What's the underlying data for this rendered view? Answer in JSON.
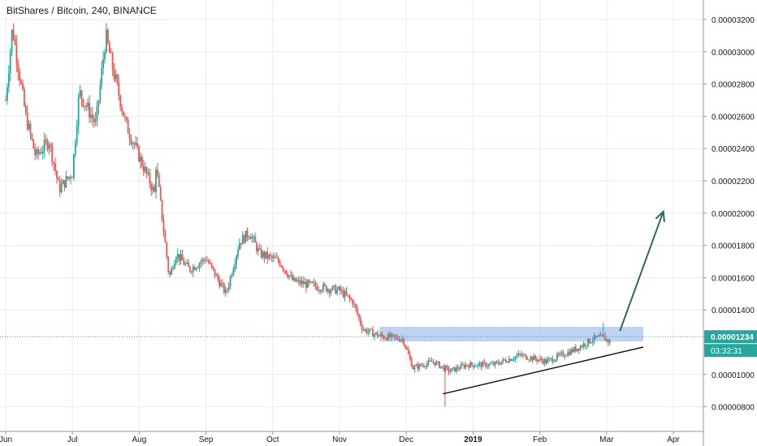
{
  "header": {
    "title": "BitShares / Bitcoin, 240, BINANCE"
  },
  "chart_data": {
    "type": "candlestick",
    "symbol": "BitShares / Bitcoin",
    "interval": "240",
    "exchange": "BINANCE",
    "x_labels": [
      "Jun",
      "Jul",
      "Aug",
      "Sep",
      "Oct",
      "Nov",
      "Dec",
      "2019",
      "Feb",
      "Mar",
      "Apr"
    ],
    "x_labels_bold": [
      "2019"
    ],
    "y_ticks": [
      "0.00003200",
      "0.00003000",
      "0.00002800",
      "0.00002600",
      "0.00002400",
      "0.00002200",
      "0.00002000",
      "0.00001800",
      "0.00001600",
      "0.00001400",
      "0.00001000",
      "0.00000800"
    ],
    "ylim": [
      6.5e-06,
      3.4e-05
    ],
    "grid": true,
    "price_path": [
      {
        "m": 0.0,
        "p": 2.7e-05
      },
      {
        "m": 0.1,
        "p": 3.15e-05
      },
      {
        "m": 0.3,
        "p": 2.6e-05
      },
      {
        "m": 0.45,
        "p": 2.35e-05
      },
      {
        "m": 0.65,
        "p": 2.45e-05
      },
      {
        "m": 0.8,
        "p": 2.15e-05
      },
      {
        "m": 1.0,
        "p": 2.25e-05
      },
      {
        "m": 1.1,
        "p": 2.75e-05
      },
      {
        "m": 1.35,
        "p": 2.55e-05
      },
      {
        "m": 1.5,
        "p": 3.1e-05
      },
      {
        "m": 1.6,
        "p": 2.9e-05
      },
      {
        "m": 1.8,
        "p": 2.55e-05
      },
      {
        "m": 2.0,
        "p": 2.35e-05
      },
      {
        "m": 2.25,
        "p": 2.1e-05
      },
      {
        "m": 2.25,
        "p": 2.3e-05
      },
      {
        "m": 2.35,
        "p": 1.95e-05
      },
      {
        "m": 2.45,
        "p": 1.6e-05
      },
      {
        "m": 2.55,
        "p": 1.75e-05
      },
      {
        "m": 2.75,
        "p": 1.65e-05
      },
      {
        "m": 3.0,
        "p": 1.72e-05
      },
      {
        "m": 3.3,
        "p": 1.5e-05
      },
      {
        "m": 3.5,
        "p": 1.82e-05
      },
      {
        "m": 3.65,
        "p": 1.88e-05
      },
      {
        "m": 3.8,
        "p": 1.75e-05
      },
      {
        "m": 4.1,
        "p": 1.7e-05
      },
      {
        "m": 4.3,
        "p": 1.58e-05
      },
      {
        "m": 4.6,
        "p": 1.55e-05
      },
      {
        "m": 5.0,
        "p": 1.52e-05
      },
      {
        "m": 5.2,
        "p": 1.45e-05
      },
      {
        "m": 5.35,
        "p": 1.28e-05
      },
      {
        "m": 5.6,
        "p": 1.24e-05
      },
      {
        "m": 5.95,
        "p": 1.22e-05
      },
      {
        "m": 6.1,
        "p": 1.04e-05
      },
      {
        "m": 6.4,
        "p": 1.08e-05
      },
      {
        "m": 6.65,
        "p": 1.02e-05
      },
      {
        "m": 6.9,
        "p": 1.06e-05
      },
      {
        "m": 7.3,
        "p": 1.06e-05
      },
      {
        "m": 7.7,
        "p": 1.12e-05
      },
      {
        "m": 8.1,
        "p": 1.08e-05
      },
      {
        "m": 8.5,
        "p": 1.15e-05
      },
      {
        "m": 8.8,
        "p": 1.22e-05
      },
      {
        "m": 8.95,
        "p": 1.23e-05
      },
      {
        "m": 9.05,
        "p": 1.2e-05
      }
    ],
    "resistance_zone": {
      "from_m": 5.6,
      "to_m": 9.55,
      "low": 1.205e-05,
      "high": 1.295e-05,
      "color": "#a8c3ef"
    },
    "support_trendline": {
      "m1": 6.55,
      "p1": 8.8e-06,
      "m2": 9.55,
      "p2": 1.17e-05,
      "color": "#131722"
    },
    "projection_arrow": {
      "m1": 9.2,
      "p1": 1.27e-05,
      "m2": 9.85,
      "p2": 2.01e-05,
      "color": "#2e6b4e"
    },
    "spike_low": {
      "m": 6.58,
      "p": 8e-06
    },
    "spike_high": {
      "m": 8.95,
      "p": 1.32e-05
    },
    "last_price": {
      "value": "0.00001234",
      "price": 1.234e-05,
      "countdown": "03:32:31",
      "color": "#28a69a"
    },
    "colors": {
      "up": "#26a69a",
      "down": "#ef5350",
      "grid": "#e8ebf0",
      "axis_text": "#131722",
      "dotted_line": "#28a69a"
    }
  }
}
